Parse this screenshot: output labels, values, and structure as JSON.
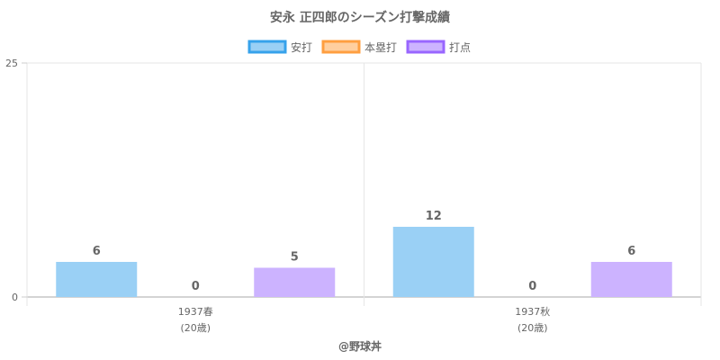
{
  "chart_data": {
    "type": "bar",
    "title": "安永 正四郎のシーズン打撃成績",
    "categories": [
      [
        "1937春",
        "(20歳)"
      ],
      [
        "1937秋",
        "(20歳)"
      ]
    ],
    "series": [
      {
        "name": "安打",
        "values": [
          6,
          12
        ],
        "fill": "#9ad0f5",
        "stroke": "#36a2eb"
      },
      {
        "name": "本塁打",
        "values": [
          0,
          0
        ],
        "fill": "#ffcf9f",
        "stroke": "#ff9f40"
      },
      {
        "name": "打点",
        "values": [
          5,
          6
        ],
        "fill": "#ccb3ff",
        "stroke": "#9966ff"
      }
    ],
    "y_ticks": [
      0,
      25
    ],
    "ylim": [
      0,
      40
    ],
    "legend_position": "top",
    "grid": true
  },
  "footer": "@野球丼"
}
